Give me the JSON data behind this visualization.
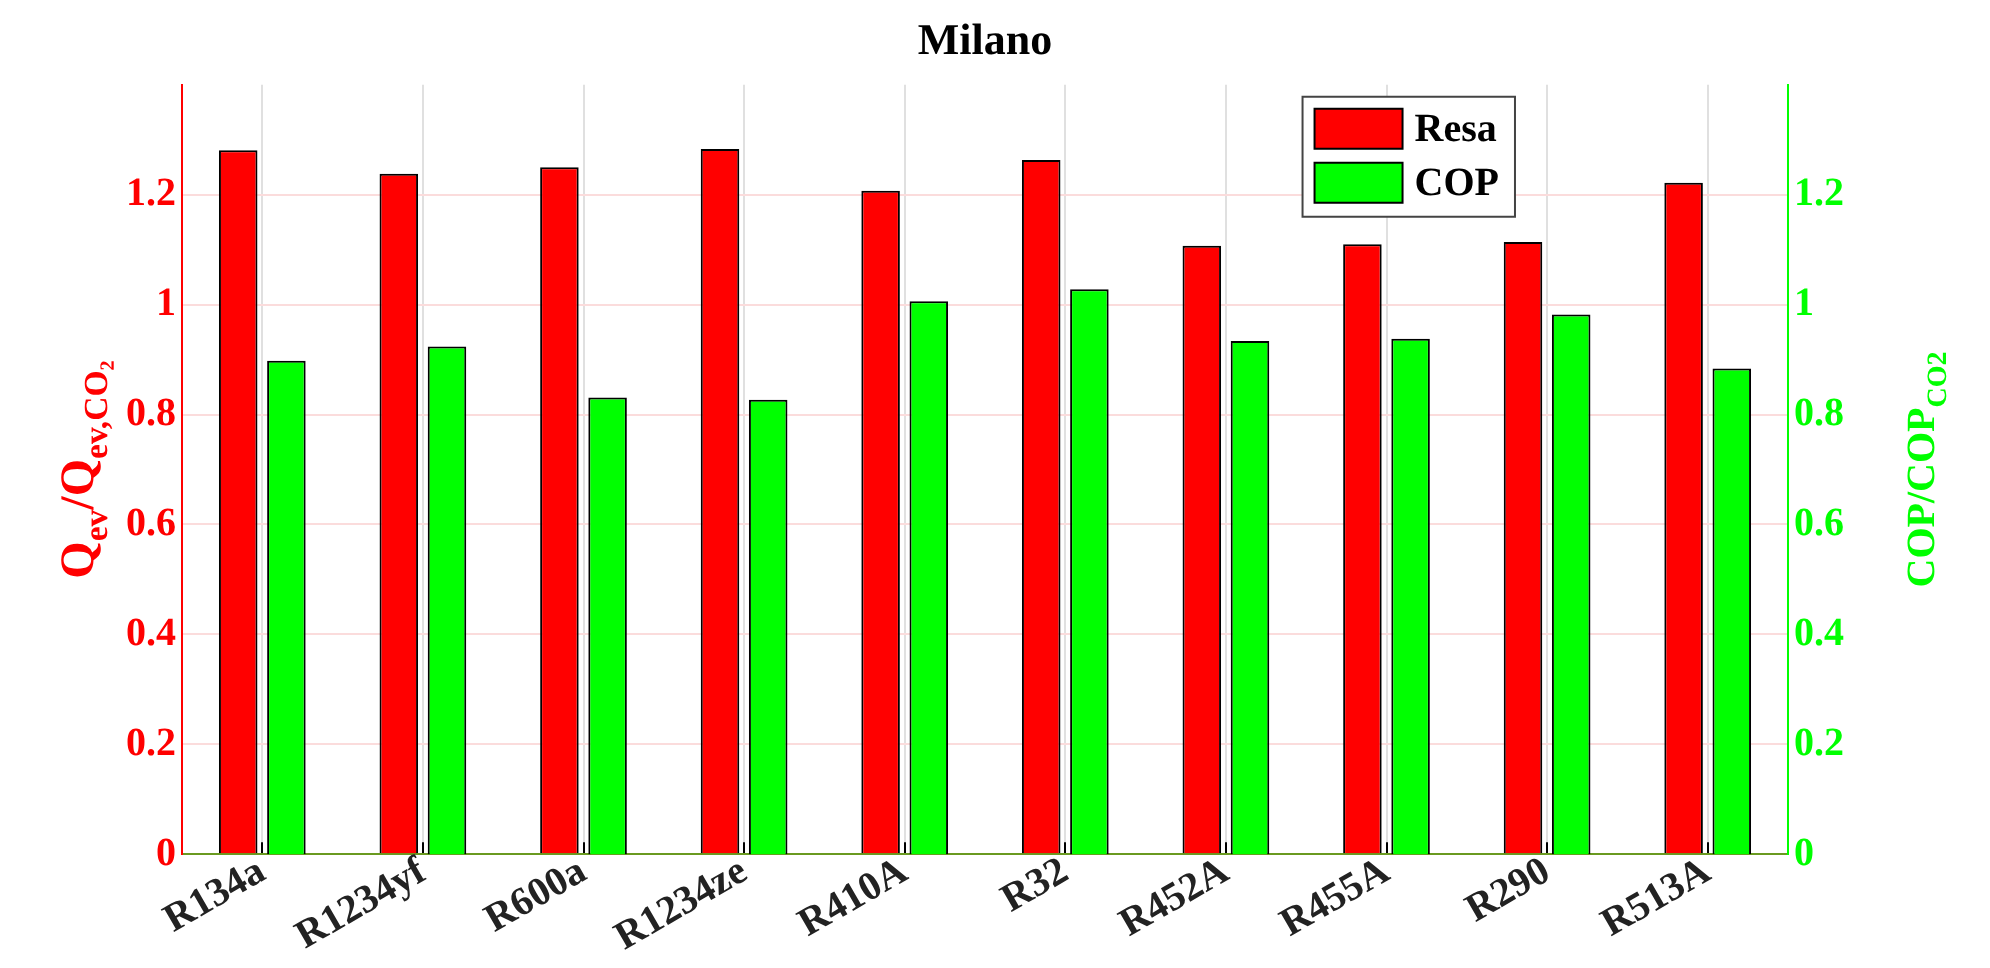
{
  "chart_data": {
    "type": "bar",
    "title": "Milano",
    "categories": [
      "R134a",
      "R1234yf",
      "R600a",
      "R1234ze",
      "R410A",
      "R32",
      "R452A",
      "R455A",
      "R290",
      "R513A"
    ],
    "series": [
      {
        "name": "Resa",
        "color": "#ff0000",
        "values": [
          1.281,
          1.238,
          1.25,
          1.283,
          1.207,
          1.263,
          1.107,
          1.11,
          1.114,
          1.222
        ]
      },
      {
        "name": "COP",
        "color": "#00ff00",
        "axis": "y2",
        "values": [
          0.898,
          0.924,
          0.831,
          0.827,
          1.006,
          1.028,
          0.934,
          0.938,
          0.982,
          0.884
        ]
      }
    ],
    "ylabel": "Q$_{ev}$/Q$_{ev,CO₂}$",
    "y2label": "COP/COP$_{CO2}$",
    "ylim": [
      0,
      1.4
    ],
    "yticks": [
      0,
      0.2,
      0.4,
      0.6,
      0.8,
      1,
      1.2
    ],
    "y2lim": [
      0,
      1.4
    ],
    "y2ticks": [
      0,
      0.2,
      0.4,
      0.6,
      0.8,
      1,
      1.2
    ],
    "grid": true,
    "legend": "top right"
  }
}
